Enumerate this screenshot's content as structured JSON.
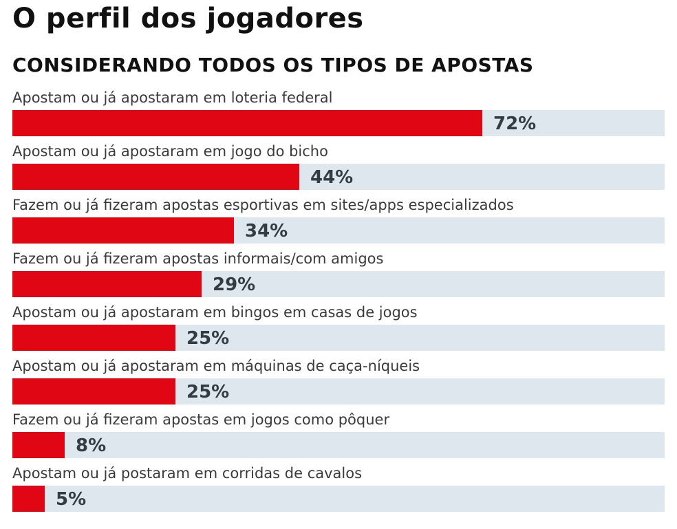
{
  "title": "O perfil dos jogadores",
  "subtitle": "CONSIDERANDO TODOS OS TIPOS DE APOSTAS",
  "colors": {
    "bar": "#e00613",
    "track": "#dfe7ee",
    "value_text": "#333c44",
    "label_text": "#3a3a3a"
  },
  "chart_data": {
    "type": "bar",
    "orientation": "horizontal",
    "title": "O perfil dos jogadores",
    "subtitle": "CONSIDERANDO TODOS OS TIPOS DE APOSTAS",
    "xlim": [
      0,
      100
    ],
    "unit": "%",
    "categories": [
      "Apostam ou já apostaram em loteria federal",
      "Apostam ou já apostaram em jogo do bicho",
      "Fazem ou já fizeram apostas esportivas em sites/apps especializados",
      "Fazem ou já fizeram apostas informais/com amigos",
      "Apostam ou já apostaram em bingos em casas de jogos",
      "Apostam ou já apostaram em máquinas de caça-níqueis",
      "Fazem ou já fizeram apostas em jogos como pôquer",
      "Apostam ou já postaram em corridas de cavalos"
    ],
    "values": [
      72,
      44,
      34,
      29,
      25,
      25,
      8,
      5
    ],
    "value_labels": [
      "72%",
      "44%",
      "34%",
      "29%",
      "25%",
      "25%",
      "8%",
      "5%"
    ]
  }
}
